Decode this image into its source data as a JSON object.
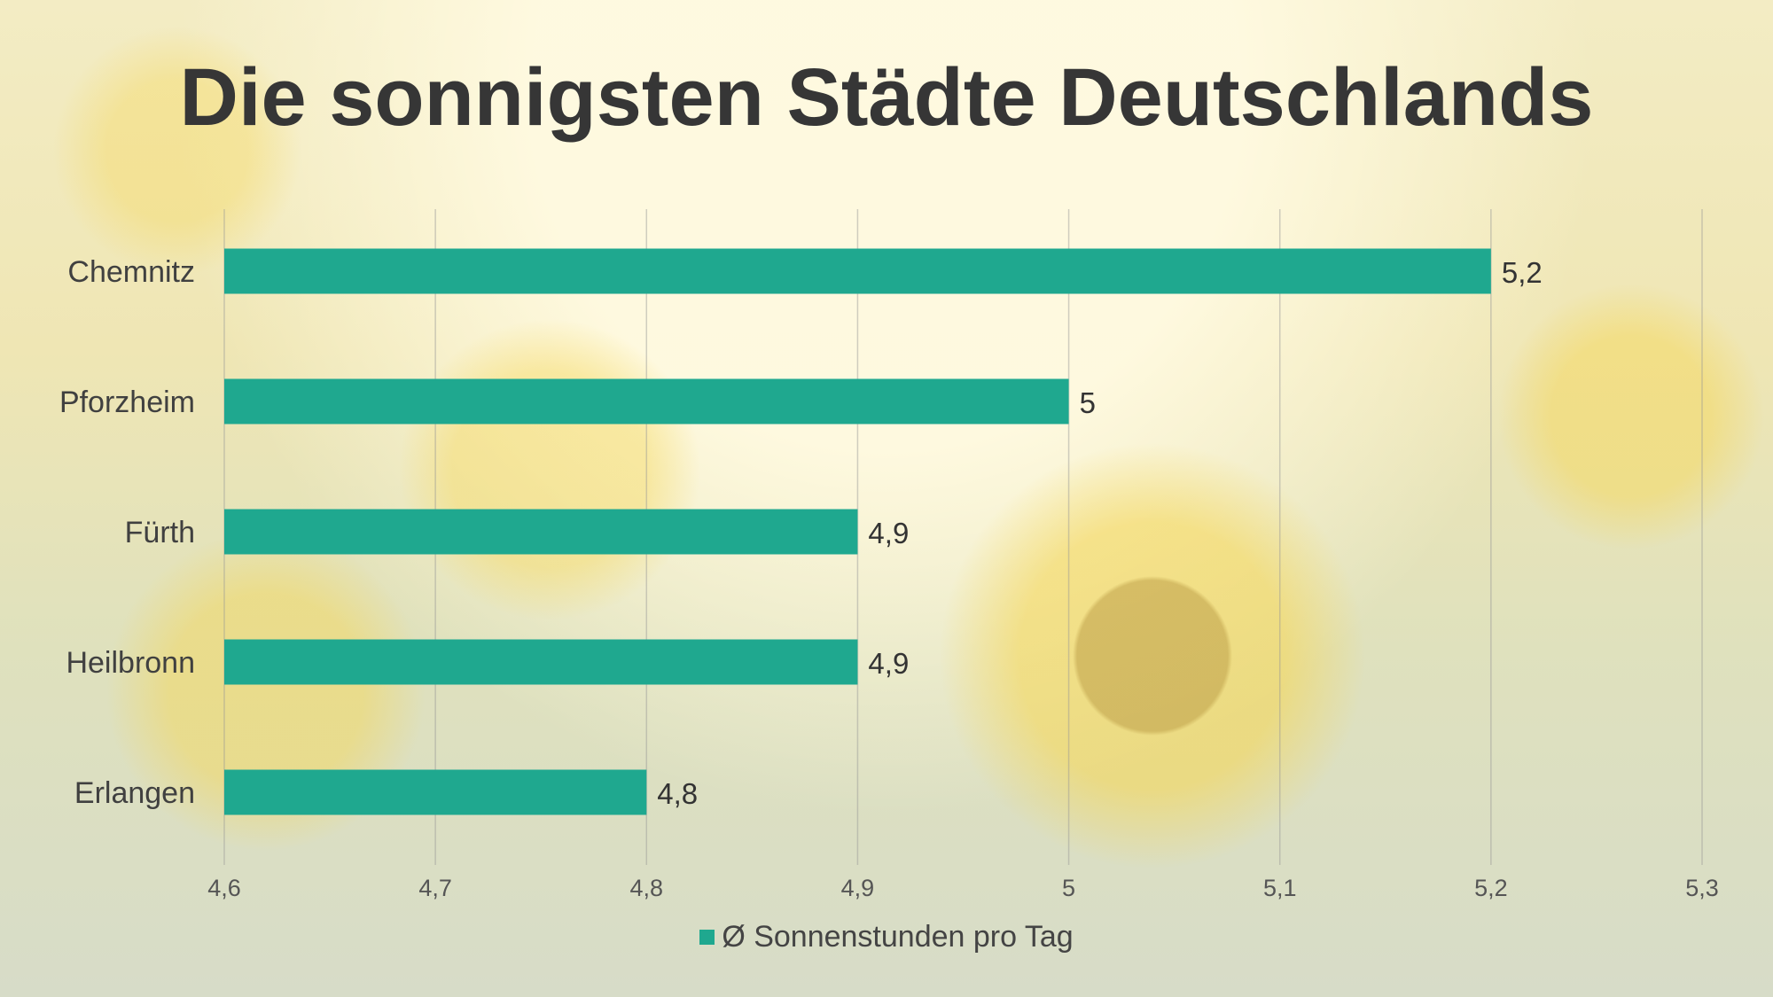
{
  "chart_data": {
    "type": "bar",
    "orientation": "horizontal",
    "title": "Die sonnigsten Städte Deutschlands",
    "categories": [
      "Chemnitz",
      "Pforzheim",
      "Fürth",
      "Heilbronn",
      "Erlangen"
    ],
    "series": [
      {
        "name": "Ø Sonnenstunden pro Tag",
        "values": [
          5.2,
          5,
          4.9,
          4.9,
          4.8
        ],
        "data_labels": [
          "5,2",
          "5",
          "4,9",
          "4,9",
          "4,8"
        ]
      }
    ],
    "xlim": [
      4.6,
      5.3
    ],
    "x_ticks": [
      "4,6",
      "4,7",
      "4,8",
      "4,9",
      "5",
      "5,1",
      "5,2",
      "5,3"
    ],
    "grid": "vertical",
    "legend": "bottom",
    "bar_color": "#1fa88f"
  }
}
